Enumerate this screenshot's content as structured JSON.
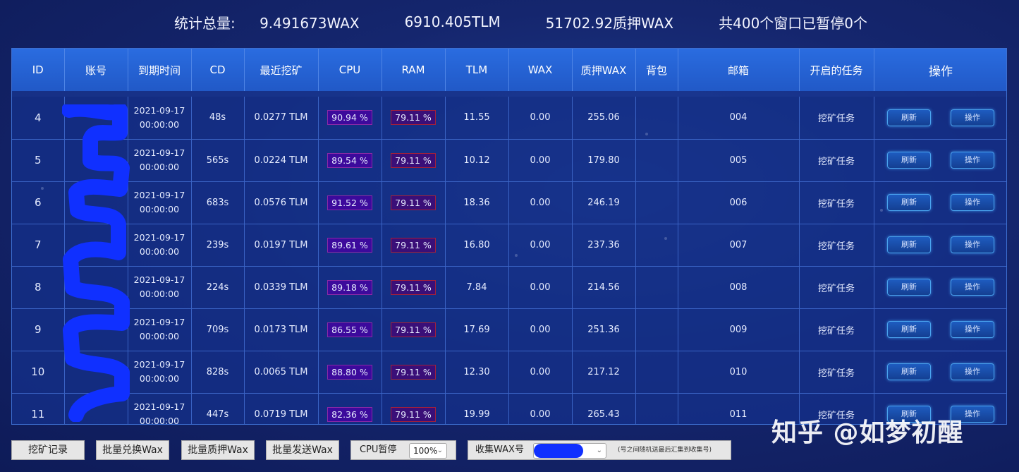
{
  "stats": {
    "label": "统计总量:",
    "wax_total": "9.491673WAX",
    "tlm_total": "6910.405TLM",
    "staked_total": "51702.92质押WAX",
    "window_status": "共400个窗口已暂停0个"
  },
  "table": {
    "headers": [
      "ID",
      "账号",
      "到期时间",
      "CD",
      "最近挖矿",
      "CPU",
      "RAM",
      "TLM",
      "WAX",
      "质押WAX",
      "背包",
      "邮箱",
      "开启的任务",
      "操作"
    ],
    "refresh_label": "刷新",
    "action_label": "操作",
    "rows": [
      {
        "id": "4",
        "account": "",
        "expiry_date": "2021-09-17",
        "expiry_time": "00:00:00",
        "cd": "48s",
        "last_mine": "0.0277 TLM",
        "cpu": "90.94 %",
        "ram": "79.11 %",
        "tlm": "11.55",
        "wax": "0.00",
        "staked": "255.06",
        "bag": "",
        "mail": "004",
        "task": "挖矿任务"
      },
      {
        "id": "5",
        "account": "",
        "expiry_date": "2021-09-17",
        "expiry_time": "00:00:00",
        "cd": "565s",
        "last_mine": "0.0224 TLM",
        "cpu": "89.54 %",
        "ram": "79.11 %",
        "tlm": "10.12",
        "wax": "0.00",
        "staked": "179.80",
        "bag": "",
        "mail": "005",
        "task": "挖矿任务"
      },
      {
        "id": "6",
        "account": "",
        "expiry_date": "2021-09-17",
        "expiry_time": "00:00:00",
        "cd": "683s",
        "last_mine": "0.0576 TLM",
        "cpu": "91.52 %",
        "ram": "79.11 %",
        "tlm": "18.36",
        "wax": "0.00",
        "staked": "246.19",
        "bag": "",
        "mail": "006",
        "task": "挖矿任务"
      },
      {
        "id": "7",
        "account": "",
        "expiry_date": "2021-09-17",
        "expiry_time": "00:00:00",
        "cd": "239s",
        "last_mine": "0.0197 TLM",
        "cpu": "89.61 %",
        "ram": "79.11 %",
        "tlm": "16.80",
        "wax": "0.00",
        "staked": "237.36",
        "bag": "",
        "mail": "007",
        "task": "挖矿任务"
      },
      {
        "id": "8",
        "account": "",
        "expiry_date": "2021-09-17",
        "expiry_time": "00:00:00",
        "cd": "224s",
        "last_mine": "0.0339 TLM",
        "cpu": "89.18 %",
        "ram": "79.11 %",
        "tlm": "7.84",
        "wax": "0.00",
        "staked": "214.56",
        "bag": "",
        "mail": "008",
        "task": "挖矿任务"
      },
      {
        "id": "9",
        "account": "",
        "expiry_date": "2021-09-17",
        "expiry_time": "00:00:00",
        "cd": "709s",
        "last_mine": "0.0173 TLM",
        "cpu": "86.55 %",
        "ram": "79.11 %",
        "tlm": "17.69",
        "wax": "0.00",
        "staked": "251.36",
        "bag": "",
        "mail": "009",
        "task": "挖矿任务"
      },
      {
        "id": "10",
        "account": "",
        "expiry_date": "2021-09-17",
        "expiry_time": "00:00:00",
        "cd": "828s",
        "last_mine": "0.0065 TLM",
        "cpu": "88.80 %",
        "ram": "79.11 %",
        "tlm": "12.30",
        "wax": "0.00",
        "staked": "217.12",
        "bag": "",
        "mail": "010",
        "task": "挖矿任务"
      },
      {
        "id": "11",
        "account": "",
        "expiry_date": "2021-09-17",
        "expiry_time": "00:00:00",
        "cd": "447s",
        "last_mine": "0.0719 TLM",
        "cpu": "82.36 %",
        "ram": "79.11 %",
        "tlm": "19.99",
        "wax": "0.00",
        "staked": "265.43",
        "bag": "",
        "mail": "011",
        "task": "挖矿任务"
      }
    ]
  },
  "toolbar": {
    "mine_log": "挖矿记录",
    "batch_exchange": "批量兑换Wax",
    "batch_stake": "批量质押Wax",
    "batch_send": "批量发送Wax",
    "cpu_pause_label": "CPU暂停",
    "cpu_pause_value": "100%",
    "collect_label": "收集WAX号",
    "collect_value": "",
    "hint": "(号之间随机送最后汇集到收集号)"
  },
  "watermark": "知乎 @如梦初醒",
  "colors": {
    "background": "#15266e",
    "header": "#2563d6",
    "cpu_badge": "#3c0a9c",
    "ram_badge": "#3a0f78",
    "redaction": "#1030ff"
  }
}
